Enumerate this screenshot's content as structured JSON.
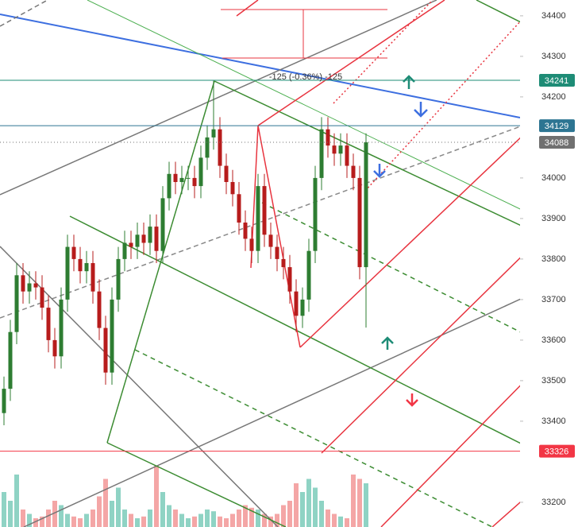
{
  "chart_data": {
    "type": "candlestick",
    "annotation": "-125 (-0.36%) -125",
    "ylim": [
      33139,
      34439
    ],
    "yticks": [
      34400,
      34300,
      34200,
      34000,
      33900,
      33800,
      33700,
      33600,
      33500,
      33400,
      33200
    ],
    "up_color": "#2e7d32",
    "down_color": "#b71c1c",
    "volume_up_color": "#8fd3c4",
    "volume_down_color": "#f4a6a6",
    "open": [
      33420,
      33480,
      33620,
      33760,
      33720,
      33740,
      33730,
      33680,
      33600,
      33560,
      33700,
      33830,
      33800,
      33770,
      33790,
      33720,
      33630,
      33520,
      33700,
      33800,
      33840,
      33830,
      33860,
      33840,
      33880,
      33820,
      33950,
      34010,
      33990,
      34000,
      34000,
      33980,
      34050,
      34100,
      34120,
      34030,
      33990,
      33960,
      33890,
      33850,
      33820,
      33980,
      33860,
      33830,
      33800,
      33780,
      33720,
      33660,
      33700,
      33820,
      34000,
      34120,
      34080,
      34060,
      34080,
      34030,
      34000,
      33780
    ],
    "high": [
      33510,
      33650,
      33790,
      33790,
      33770,
      33770,
      33760,
      33710,
      33630,
      33730,
      33860,
      33860,
      33830,
      33820,
      33820,
      33750,
      33660,
      33730,
      33830,
      33870,
      33870,
      33890,
      33890,
      33910,
      33910,
      33980,
      34040,
      34040,
      34030,
      34030,
      34030,
      34080,
      34130,
      34241,
      34150,
      34060,
      34020,
      33990,
      33920,
      33880,
      34010,
      34010,
      33890,
      33860,
      33830,
      33810,
      33750,
      33730,
      33850,
      34030,
      34150,
      34150,
      34110,
      34110,
      34110,
      34060,
      34030,
      34110
    ],
    "low": [
      33390,
      33450,
      33590,
      33690,
      33690,
      33700,
      33650,
      33570,
      33530,
      33530,
      33670,
      33770,
      33740,
      33740,
      33690,
      33600,
      33490,
      33490,
      33670,
      33770,
      33800,
      33800,
      33810,
      33810,
      33790,
      33790,
      33920,
      33960,
      33960,
      33970,
      33950,
      33950,
      34020,
      34070,
      34000,
      33960,
      33930,
      33860,
      33820,
      33790,
      33790,
      33830,
      33800,
      33770,
      33750,
      33690,
      33620,
      33630,
      33670,
      33790,
      33970,
      34050,
      34030,
      34030,
      34000,
      33970,
      33750,
      33631
    ],
    "close": [
      33480,
      33620,
      33760,
      33720,
      33740,
      33730,
      33680,
      33600,
      33560,
      33700,
      33830,
      33800,
      33770,
      33790,
      33720,
      33630,
      33520,
      33700,
      33800,
      33840,
      33830,
      33860,
      33840,
      33880,
      33820,
      33950,
      34010,
      33990,
      34000,
      34000,
      33980,
      34050,
      34100,
      34120,
      34030,
      33990,
      33960,
      33890,
      33850,
      33820,
      33980,
      33860,
      33830,
      33800,
      33780,
      33720,
      33660,
      33700,
      33820,
      34000,
      34120,
      34080,
      34060,
      34080,
      34030,
      34000,
      33780,
      34088
    ],
    "volume": [
      40,
      30,
      60,
      20,
      15,
      10,
      12,
      20,
      30,
      25,
      15,
      12,
      10,
      15,
      20,
      35,
      55,
      30,
      45,
      20,
      15,
      10,
      12,
      20,
      70,
      40,
      25,
      20,
      15,
      10,
      12,
      15,
      20,
      18,
      12,
      10,
      15,
      20,
      25,
      22,
      20,
      15,
      12,
      15,
      25,
      30,
      50,
      40,
      55,
      45,
      30,
      20,
      15,
      12,
      10,
      60,
      55,
      50
    ],
    "volume_lim": [
      0,
      100
    ],
    "price_lines": [
      {
        "value": 34241,
        "label": "34241",
        "color": "#1e8c76",
        "style": "solid"
      },
      {
        "value": 34129,
        "label": "34129",
        "color": "#2d7592",
        "style": "solid"
      },
      {
        "value": 34088,
        "label": "34088",
        "color": "#707070",
        "style": "dotted"
      },
      {
        "value": 33326,
        "label": "33326",
        "color": "#f23645",
        "style": "solid"
      }
    ]
  }
}
